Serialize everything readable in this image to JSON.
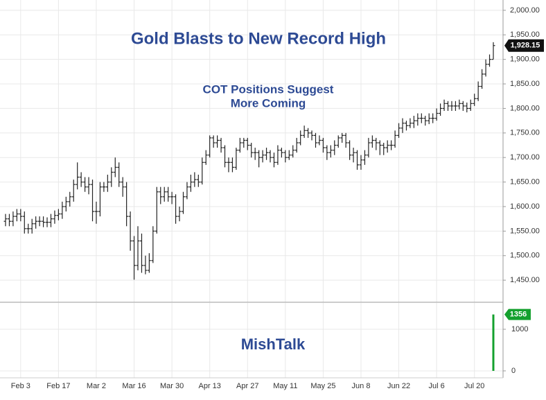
{
  "chart_data": [
    {
      "type": "ohlc",
      "title": "Gold Blasts to New Record High",
      "subtitle": [
        "COT Positions Suggest",
        "More Coming"
      ],
      "annotation": "MishTalk",
      "color": "#222222",
      "title_color": "#2d4a94",
      "grid": true,
      "categories": [
        null,
        null,
        null,
        null,
        "Feb 3",
        null,
        null,
        null,
        null,
        null,
        null,
        null,
        null,
        null,
        "Feb 17",
        null,
        null,
        null,
        null,
        null,
        null,
        null,
        null,
        null,
        "Mar 2",
        null,
        null,
        null,
        null,
        null,
        null,
        null,
        null,
        null,
        "Mar 16",
        null,
        null,
        null,
        null,
        null,
        null,
        null,
        null,
        null,
        "Mar 30",
        null,
        null,
        null,
        null,
        null,
        null,
        null,
        null,
        null,
        "Apr 13",
        null,
        null,
        null,
        null,
        null,
        null,
        null,
        null,
        null,
        "Apr 27",
        null,
        null,
        null,
        null,
        null,
        null,
        null,
        null,
        null,
        "May 11",
        null,
        null,
        null,
        null,
        null,
        null,
        null,
        null,
        null,
        "May 25",
        null,
        null,
        null,
        null,
        null,
        null,
        null,
        null,
        null,
        "Jun 8",
        null,
        null,
        null,
        null,
        null,
        null,
        null,
        null,
        null,
        "Jun 22",
        null,
        null,
        null,
        null,
        null,
        null,
        null,
        null,
        null,
        "Jul 6",
        null,
        null,
        null,
        null,
        null,
        null,
        null,
        null,
        null,
        "Jul 20",
        null,
        null,
        null,
        null,
        null
      ],
      "open": [
        1570,
        1575,
        1570,
        1580,
        1585,
        1580,
        1555,
        1555,
        1565,
        1570,
        1570,
        1568,
        1568,
        1575,
        1582,
        1585,
        1600,
        1610,
        1620,
        1645,
        1660,
        1650,
        1640,
        1645,
        1590,
        1590,
        1640,
        1640,
        1650,
        1670,
        1680,
        1650,
        1640,
        1580,
        1530,
        1480,
        1530,
        1480,
        1470,
        1490,
        1550,
        1630,
        1620,
        1630,
        1620,
        1620,
        1580,
        1590,
        1620,
        1640,
        1650,
        1655,
        1650,
        1690,
        1705,
        1740,
        1730,
        1735,
        1720,
        1690,
        1690,
        1680,
        1715,
        1730,
        1735,
        1725,
        1710,
        1710,
        1700,
        1705,
        1710,
        1700,
        1690,
        1715,
        1710,
        1700,
        1705,
        1715,
        1730,
        1745,
        1755,
        1750,
        1745,
        1730,
        1735,
        1720,
        1710,
        1715,
        1725,
        1740,
        1745,
        1730,
        1705,
        1710,
        1685,
        1695,
        1705,
        1730,
        1735,
        1730,
        1725,
        1720,
        1725,
        1725,
        1745,
        1760,
        1770,
        1765,
        1770,
        1775,
        1780,
        1780,
        1775,
        1780,
        1780,
        1790,
        1800,
        1810,
        1805,
        1805,
        1805,
        1810,
        1805,
        1800,
        1810,
        1820,
        1845,
        1870,
        1890,
        1900
      ],
      "high": [
        1585,
        1585,
        1590,
        1595,
        1595,
        1590,
        1565,
        1575,
        1580,
        1580,
        1580,
        1578,
        1585,
        1592,
        1595,
        1610,
        1620,
        1630,
        1655,
        1690,
        1670,
        1660,
        1660,
        1655,
        1610,
        1650,
        1650,
        1665,
        1680,
        1700,
        1690,
        1660,
        1650,
        1590,
        1540,
        1560,
        1545,
        1500,
        1505,
        1560,
        1640,
        1640,
        1640,
        1640,
        1630,
        1625,
        1600,
        1630,
        1650,
        1665,
        1670,
        1665,
        1700,
        1715,
        1745,
        1745,
        1745,
        1740,
        1725,
        1700,
        1700,
        1720,
        1740,
        1740,
        1740,
        1730,
        1720,
        1715,
        1715,
        1720,
        1715,
        1710,
        1725,
        1720,
        1715,
        1715,
        1725,
        1740,
        1755,
        1765,
        1760,
        1755,
        1750,
        1745,
        1740,
        1725,
        1725,
        1735,
        1745,
        1750,
        1750,
        1735,
        1720,
        1715,
        1705,
        1715,
        1740,
        1745,
        1740,
        1735,
        1730,
        1735,
        1735,
        1755,
        1770,
        1780,
        1775,
        1780,
        1785,
        1790,
        1790,
        1785,
        1790,
        1790,
        1800,
        1810,
        1818,
        1815,
        1815,
        1815,
        1818,
        1815,
        1812,
        1818,
        1830,
        1855,
        1880,
        1900,
        1910,
        1935
      ],
      "low": [
        1560,
        1560,
        1560,
        1570,
        1570,
        1545,
        1545,
        1545,
        1555,
        1560,
        1558,
        1558,
        1558,
        1565,
        1572,
        1575,
        1590,
        1600,
        1610,
        1635,
        1640,
        1630,
        1625,
        1570,
        1565,
        1580,
        1630,
        1630,
        1640,
        1660,
        1640,
        1620,
        1560,
        1510,
        1451,
        1470,
        1465,
        1462,
        1465,
        1485,
        1545,
        1605,
        1610,
        1610,
        1605,
        1565,
        1570,
        1585,
        1615,
        1630,
        1640,
        1640,
        1645,
        1685,
        1700,
        1720,
        1720,
        1710,
        1680,
        1670,
        1670,
        1675,
        1710,
        1720,
        1715,
        1700,
        1695,
        1680,
        1690,
        1695,
        1690,
        1680,
        1685,
        1700,
        1690,
        1695,
        1700,
        1710,
        1725,
        1740,
        1740,
        1735,
        1720,
        1725,
        1710,
        1695,
        1700,
        1705,
        1720,
        1730,
        1720,
        1695,
        1690,
        1675,
        1675,
        1685,
        1700,
        1720,
        1715,
        1705,
        1705,
        1710,
        1715,
        1720,
        1740,
        1750,
        1755,
        1760,
        1760,
        1765,
        1770,
        1765,
        1768,
        1770,
        1775,
        1785,
        1795,
        1795,
        1795,
        1795,
        1798,
        1795,
        1792,
        1795,
        1805,
        1815,
        1840,
        1865,
        1885,
        1900
      ],
      "close": [
        1575,
        1570,
        1580,
        1585,
        1580,
        1555,
        1555,
        1565,
        1570,
        1570,
        1568,
        1568,
        1575,
        1582,
        1585,
        1600,
        1610,
        1620,
        1645,
        1660,
        1650,
        1640,
        1645,
        1590,
        1590,
        1640,
        1640,
        1650,
        1670,
        1680,
        1650,
        1640,
        1580,
        1530,
        1480,
        1530,
        1480,
        1470,
        1490,
        1550,
        1630,
        1620,
        1630,
        1620,
        1620,
        1580,
        1590,
        1620,
        1640,
        1650,
        1655,
        1650,
        1690,
        1705,
        1740,
        1730,
        1735,
        1720,
        1690,
        1690,
        1680,
        1715,
        1730,
        1735,
        1725,
        1710,
        1710,
        1700,
        1705,
        1710,
        1700,
        1690,
        1715,
        1710,
        1700,
        1705,
        1715,
        1730,
        1745,
        1755,
        1750,
        1745,
        1730,
        1735,
        1720,
        1710,
        1715,
        1725,
        1740,
        1745,
        1730,
        1705,
        1710,
        1685,
        1695,
        1705,
        1730,
        1735,
        1730,
        1725,
        1720,
        1725,
        1725,
        1745,
        1760,
        1770,
        1765,
        1770,
        1775,
        1780,
        1780,
        1775,
        1780,
        1780,
        1790,
        1800,
        1810,
        1805,
        1805,
        1805,
        1810,
        1805,
        1800,
        1810,
        1820,
        1845,
        1870,
        1890,
        1900,
        1928.15
      ],
      "last_price_label": "1,928.15",
      "ylim": [
        1405,
        2021
      ],
      "yticks": [
        {
          "value": 1450,
          "label": "1,450.00"
        },
        {
          "value": 1500,
          "label": "1,500.00"
        },
        {
          "value": 1550,
          "label": "1,550.00"
        },
        {
          "value": 1600,
          "label": "1,600.00"
        },
        {
          "value": 1650,
          "label": "1,650.00"
        },
        {
          "value": 1700,
          "label": "1,700.00"
        },
        {
          "value": 1750,
          "label": "1,750.00"
        },
        {
          "value": 1800,
          "label": "1,800.00"
        },
        {
          "value": 1850,
          "label": "1,850.00"
        },
        {
          "value": 1900,
          "label": "1,900.00"
        },
        {
          "value": 1950,
          "label": "1,950.00"
        },
        {
          "value": 2000,
          "label": "2,000.00"
        }
      ]
    },
    {
      "type": "bar",
      "color": "#14a02e",
      "values": [
        null,
        null,
        null,
        null,
        null,
        null,
        null,
        null,
        null,
        null,
        null,
        null,
        null,
        null,
        null,
        null,
        null,
        null,
        null,
        null,
        null,
        null,
        null,
        null,
        null,
        null,
        null,
        null,
        null,
        null,
        null,
        null,
        null,
        null,
        null,
        null,
        null,
        null,
        null,
        null,
        null,
        null,
        null,
        null,
        null,
        null,
        null,
        null,
        null,
        null,
        null,
        null,
        null,
        null,
        null,
        null,
        null,
        null,
        null,
        null,
        null,
        null,
        null,
        null,
        null,
        null,
        null,
        null,
        null,
        null,
        null,
        null,
        null,
        null,
        null,
        null,
        null,
        null,
        null,
        null,
        null,
        null,
        null,
        null,
        null,
        null,
        null,
        null,
        null,
        null,
        null,
        null,
        null,
        null,
        null,
        null,
        null,
        null,
        null,
        null,
        null,
        null,
        null,
        null,
        null,
        null,
        null,
        null,
        null,
        null,
        null,
        null,
        null,
        null,
        null,
        null,
        null,
        null,
        null,
        null,
        null,
        null,
        null,
        null,
        null,
        null,
        null,
        null,
        null,
        1356
      ],
      "ylim": [
        -167,
        1633
      ],
      "yticks": [
        0,
        1000
      ]
    }
  ]
}
